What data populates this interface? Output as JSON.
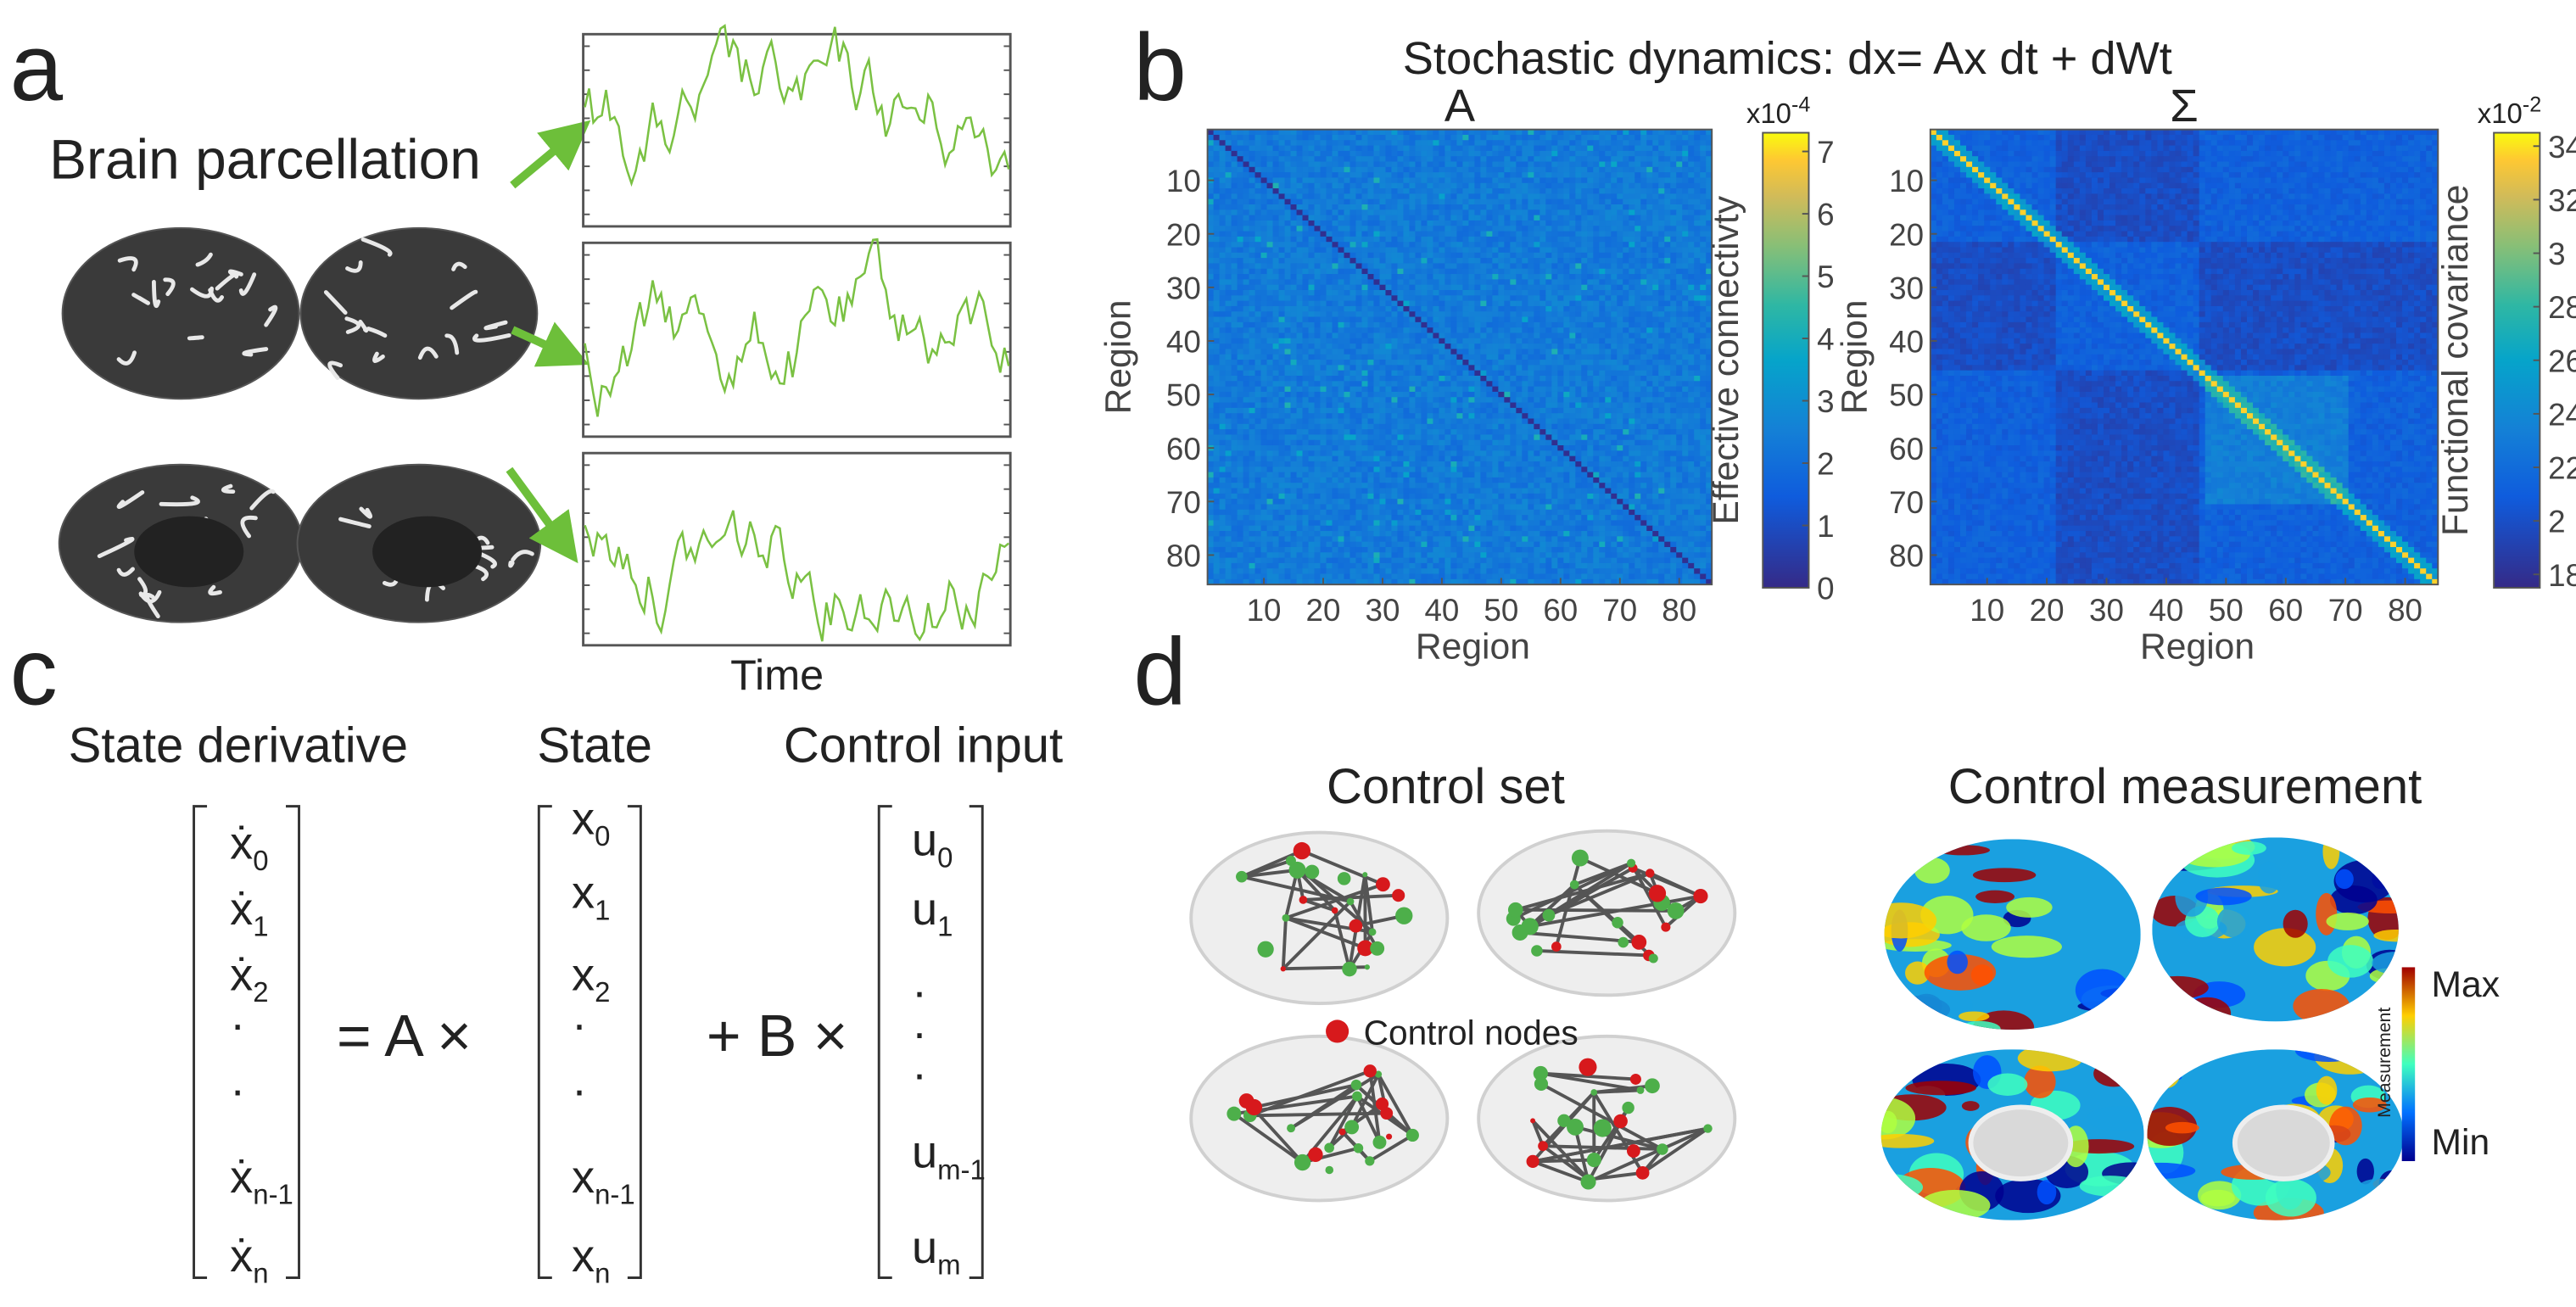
{
  "panel_a": {
    "label": "a",
    "title": "Brain parcellation",
    "x_label": "Time"
  },
  "panel_b": {
    "label": "b",
    "title": "Stochastic dynamics:  dx= Ax dt + dWt",
    "matrix_a": {
      "title": "A",
      "x_label": "Region",
      "y_label": "Region",
      "xlim": [
        0.5,
        85.5
      ],
      "ylim": [
        0.5,
        85.5
      ],
      "xticks": [
        10,
        20,
        30,
        40,
        50,
        60,
        70,
        80
      ],
      "yticks": [
        10,
        20,
        30,
        40,
        50,
        60,
        70,
        80
      ],
      "colorbar": {
        "label": "Effective connectivty",
        "scale": "x10",
        "exponent": "-4",
        "lim": [
          0,
          7.3
        ],
        "ticks": [
          0,
          1,
          2,
          3,
          4,
          5,
          6,
          7
        ]
      }
    },
    "matrix_sigma": {
      "title": "Σ",
      "x_label": "Region",
      "y_label": "Region",
      "xlim": [
        0.5,
        85.5
      ],
      "ylim": [
        0.5,
        85.5
      ],
      "xticks": [
        10,
        20,
        30,
        40,
        50,
        60,
        70,
        80
      ],
      "yticks": [
        10,
        20,
        30,
        40,
        50,
        60,
        70,
        80
      ],
      "colorbar": {
        "label": "Functional covariance",
        "scale": "x10",
        "exponent": "-2",
        "lim": [
          17.5,
          34.5
        ],
        "ticks": [
          18,
          {
            "value": 20,
            "label": "2"
          },
          22,
          24,
          26,
          28,
          {
            "value": 30,
            "label": "3"
          },
          32,
          34
        ]
      }
    }
  },
  "panel_c": {
    "label": "c",
    "headings": [
      "State derivative",
      "State",
      "Control input"
    ],
    "operators": [
      "= A ×",
      "+ B ×"
    ],
    "vectors": [
      [
        {
          "symbol": "ẋ",
          "index": "0"
        },
        {
          "symbol": "ẋ",
          "index": "1"
        },
        {
          "symbol": "ẋ",
          "index": "2"
        },
        {
          "symbol": "·"
        },
        {
          "symbol": "·"
        },
        {
          "symbol": "ẋ",
          "index": "n-1"
        },
        {
          "symbol": "ẋ",
          "index": "n"
        }
      ],
      [
        {
          "symbol": "x",
          "index": "0"
        },
        {
          "symbol": "x",
          "index": "1"
        },
        {
          "symbol": "x",
          "index": "2"
        },
        {
          "symbol": "·"
        },
        {
          "symbol": "·"
        },
        {
          "symbol": "x",
          "index": "n-1"
        },
        {
          "symbol": "x",
          "index": "n"
        }
      ],
      [
        {
          "symbol": "u",
          "index": "0"
        },
        {
          "symbol": "u",
          "index": "1"
        },
        {
          "symbol": "·"
        },
        {
          "symbol": "·"
        },
        {
          "symbol": "·"
        },
        {
          "symbol": "u",
          "index": "m-1"
        },
        {
          "symbol": "u",
          "index": "m"
        }
      ]
    ]
  },
  "panel_d": {
    "label": "d",
    "control_set_title": "Control set",
    "legend": "Control nodes",
    "measurement_title": "Control measurement",
    "colorbar_max": "Max",
    "colorbar_min": "Min",
    "colorbar_label": "Measurement"
  }
}
